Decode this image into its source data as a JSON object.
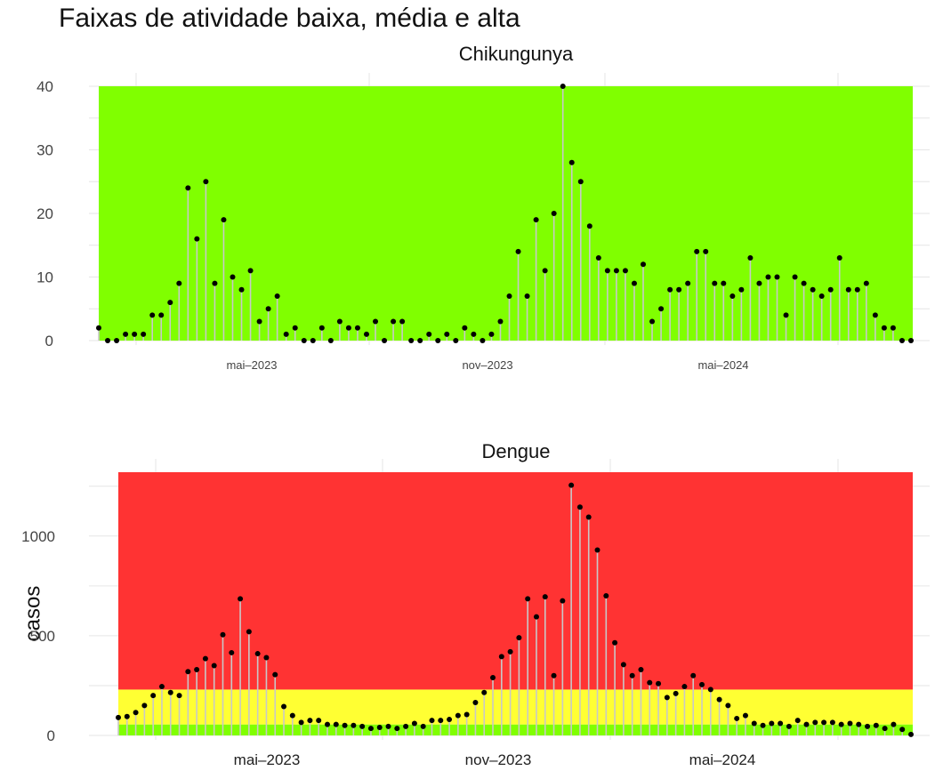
{
  "title": "Faixas de atividade baixa, média e alta",
  "ylabel": "casos",
  "colors": {
    "low": "#80FF00",
    "medium": "#FFFF33",
    "high": "#FF3333",
    "stem": "#C8C8C8",
    "point": "#000000",
    "grid": "#E6E6E6"
  },
  "chart_data": [
    {
      "type": "scatter",
      "title": "Chikungunya",
      "x_ticks": [
        "mai–2023",
        "nov–2023",
        "mai–2024"
      ],
      "y_ticks": [
        0,
        10,
        20,
        30,
        40
      ],
      "ylim": [
        0,
        40
      ],
      "bands": [
        {
          "level": "baixa",
          "from": 0,
          "to": 40,
          "color": "#80FF00"
        }
      ],
      "values": [
        2,
        0,
        0,
        1,
        1,
        1,
        4,
        4,
        6,
        9,
        24,
        16,
        25,
        9,
        19,
        10,
        8,
        11,
        3,
        5,
        7,
        1,
        2,
        0,
        0,
        2,
        0,
        3,
        2,
        2,
        1,
        3,
        0,
        3,
        3,
        0,
        0,
        1,
        0,
        1,
        0,
        2,
        1,
        0,
        1,
        3,
        7,
        14,
        7,
        19,
        11,
        20,
        40,
        28,
        25,
        18,
        13,
        11,
        11,
        11,
        9,
        12,
        3,
        5,
        8,
        8,
        9,
        14,
        14,
        9,
        9,
        7,
        8,
        13,
        9,
        10,
        10,
        4,
        10,
        9,
        8,
        7,
        8,
        13,
        8,
        8,
        9,
        4,
        2,
        2,
        0,
        0
      ]
    },
    {
      "type": "scatter",
      "title": "Dengue",
      "x_ticks": [
        "mai–2023",
        "nov–2023",
        "mai–2024"
      ],
      "y_ticks": [
        0,
        500,
        1000
      ],
      "ylim": [
        0,
        1320
      ],
      "bands": [
        {
          "level": "baixa",
          "from": 0,
          "to": 55,
          "color": "#80FF00"
        },
        {
          "level": "média",
          "from": 55,
          "to": 230,
          "color": "#FFFF33"
        },
        {
          "level": "alta",
          "from": 230,
          "to": 1320,
          "color": "#FF3333"
        }
      ],
      "values": [
        90,
        95,
        115,
        150,
        200,
        245,
        215,
        200,
        320,
        330,
        385,
        350,
        505,
        415,
        685,
        520,
        410,
        390,
        305,
        145,
        100,
        65,
        75,
        75,
        55,
        55,
        50,
        50,
        45,
        35,
        40,
        45,
        35,
        45,
        60,
        45,
        75,
        75,
        80,
        100,
        105,
        165,
        215,
        290,
        395,
        420,
        490,
        685,
        595,
        695,
        300,
        675,
        1255,
        1145,
        1095,
        930,
        700,
        465,
        355,
        300,
        330,
        265,
        260,
        190,
        210,
        245,
        300,
        255,
        230,
        180,
        150,
        85,
        100,
        60,
        50,
        60,
        60,
        45,
        75,
        55,
        65,
        65,
        65,
        55,
        60,
        55,
        45,
        50,
        35,
        55,
        30,
        5
      ]
    }
  ]
}
